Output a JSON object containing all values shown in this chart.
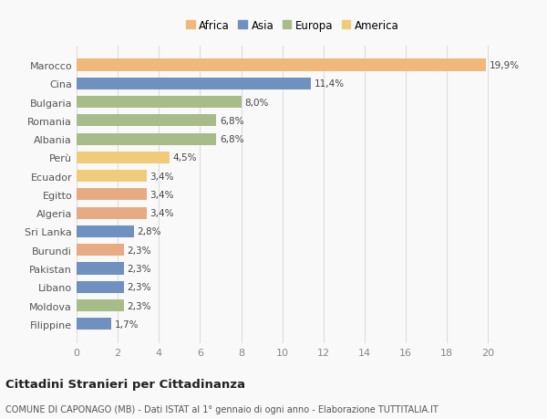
{
  "categories": [
    "Filippine",
    "Moldova",
    "Libano",
    "Pakistan",
    "Burundi",
    "Sri Lanka",
    "Algeria",
    "Egitto",
    "Ecuador",
    "Perù",
    "Albania",
    "Romania",
    "Bulgaria",
    "Cina",
    "Marocco"
  ],
  "values": [
    1.7,
    2.3,
    2.3,
    2.3,
    2.3,
    2.8,
    3.4,
    3.4,
    3.4,
    4.5,
    6.8,
    6.8,
    8.0,
    11.4,
    19.9
  ],
  "colors": [
    "#7090c0",
    "#a8bc8a",
    "#7090c0",
    "#7090c0",
    "#e8aa82",
    "#7090c0",
    "#e8aa82",
    "#e8aa82",
    "#f0cc7a",
    "#f0cc7a",
    "#a8bc8a",
    "#a8bc8a",
    "#a8bc8a",
    "#7090c0",
    "#f0b87a"
  ],
  "labels": [
    "1,7%",
    "2,3%",
    "2,3%",
    "2,3%",
    "2,3%",
    "2,8%",
    "3,4%",
    "3,4%",
    "3,4%",
    "4,5%",
    "6,8%",
    "6,8%",
    "8,0%",
    "11,4%",
    "19,9%"
  ],
  "legend": [
    {
      "label": "Africa",
      "color": "#f0b87a"
    },
    {
      "label": "Asia",
      "color": "#7090c0"
    },
    {
      "label": "Europa",
      "color": "#a8bc8a"
    },
    {
      "label": "America",
      "color": "#f0cc7a"
    }
  ],
  "xlim": [
    0,
    21
  ],
  "xticks": [
    0,
    2,
    4,
    6,
    8,
    10,
    12,
    14,
    16,
    18,
    20
  ],
  "title": "Cittadini Stranieri per Cittadinanza",
  "subtitle": "COMUNE DI CAPONAGO (MB) - Dati ISTAT al 1° gennaio di ogni anno - Elaborazione TUTTITALIA.IT",
  "bg_color": "#f9f9f9",
  "grid_color": "#dddddd"
}
